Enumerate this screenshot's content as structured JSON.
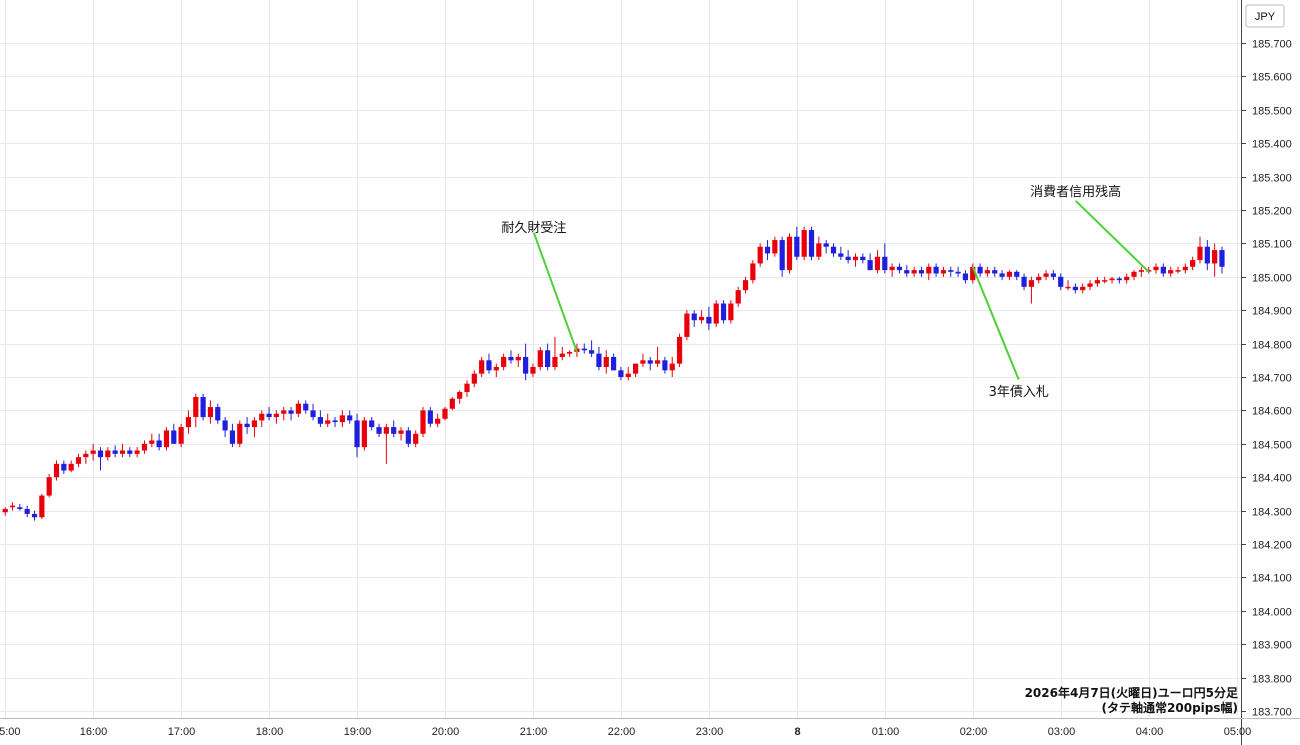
{
  "chart_data": {
    "type": "candlestick",
    "currency_label": "JPY",
    "ylim": [
      183.7,
      185.75
    ],
    "y_ticks": [
      "185.700",
      "185.600",
      "185.500",
      "185.400",
      "185.300",
      "185.200",
      "185.100",
      "185.000",
      "184.900",
      "184.800",
      "184.700",
      "184.600",
      "184.500",
      "184.400",
      "184.300",
      "184.200",
      "184.100",
      "184.000",
      "183.900",
      "183.800",
      "183.700"
    ],
    "x_tick_labels": [
      "5:00",
      "16:00",
      "17:00",
      "18:00",
      "19:00",
      "20:00",
      "21:00",
      "22:00",
      "23:00",
      "8",
      "01:00",
      "02:00",
      "03:00",
      "04:00",
      "05:00"
    ],
    "bold_x_tick": "8",
    "grid": true,
    "caption": [
      "2026年4月7日(火曜日)ユーロ円5分足",
      "(タテ軸通常200pips幅)"
    ],
    "up_color": "#e8000b",
    "down_color": "#1f1fdd",
    "annotation_color": "#4cd137",
    "annotations": [
      {
        "label": "耐久財受注",
        "bar": 78,
        "price": 184.775
      },
      {
        "label": "3年債入札",
        "bar": 132,
        "price": 185.03
      },
      {
        "label": "消費者信用残高",
        "bar": 156,
        "price": 185.015
      }
    ],
    "candles": [
      [
        184.295,
        184.31,
        184.285,
        184.305
      ],
      [
        184.31,
        184.325,
        184.3,
        184.315
      ],
      [
        184.31,
        184.32,
        184.3,
        184.305
      ],
      [
        184.305,
        184.315,
        184.28,
        184.29
      ],
      [
        184.29,
        184.3,
        184.27,
        184.28
      ],
      [
        184.28,
        184.35,
        184.275,
        184.345
      ],
      [
        184.345,
        184.41,
        184.34,
        184.4
      ],
      [
        184.4,
        184.45,
        184.39,
        184.44
      ],
      [
        184.44,
        184.45,
        184.41,
        184.42
      ],
      [
        184.42,
        184.45,
        184.415,
        184.44
      ],
      [
        184.44,
        184.47,
        184.43,
        184.46
      ],
      [
        184.46,
        184.48,
        184.44,
        184.47
      ],
      [
        184.47,
        184.5,
        184.45,
        184.48
      ],
      [
        184.48,
        184.49,
        184.42,
        184.46
      ],
      [
        184.46,
        184.49,
        184.45,
        184.48
      ],
      [
        184.48,
        184.495,
        184.46,
        184.47
      ],
      [
        184.47,
        184.5,
        184.46,
        184.48
      ],
      [
        184.48,
        184.49,
        184.46,
        184.47
      ],
      [
        184.47,
        184.49,
        184.46,
        184.48
      ],
      [
        184.48,
        184.51,
        184.47,
        184.5
      ],
      [
        184.5,
        184.53,
        184.49,
        184.51
      ],
      [
        184.51,
        184.53,
        184.48,
        184.49
      ],
      [
        184.49,
        184.55,
        184.48,
        184.54
      ],
      [
        184.54,
        184.56,
        184.5,
        184.5
      ],
      [
        184.5,
        184.56,
        184.49,
        184.55
      ],
      [
        184.55,
        184.6,
        184.53,
        184.58
      ],
      [
        184.58,
        184.65,
        184.55,
        184.64
      ],
      [
        184.64,
        184.65,
        184.57,
        184.58
      ],
      [
        184.58,
        184.63,
        184.56,
        184.61
      ],
      [
        184.61,
        184.62,
        184.56,
        184.57
      ],
      [
        184.57,
        184.58,
        184.52,
        184.54
      ],
      [
        184.54,
        184.56,
        184.49,
        184.5
      ],
      [
        184.5,
        184.57,
        184.49,
        184.56
      ],
      [
        184.56,
        184.58,
        184.53,
        184.55
      ],
      [
        184.55,
        184.58,
        184.52,
        184.57
      ],
      [
        184.57,
        184.6,
        184.55,
        184.59
      ],
      [
        184.59,
        184.61,
        184.57,
        184.58
      ],
      [
        184.58,
        184.6,
        184.56,
        184.59
      ],
      [
        184.59,
        184.61,
        184.57,
        184.6
      ],
      [
        184.6,
        184.61,
        184.57,
        184.59
      ],
      [
        184.59,
        184.63,
        184.58,
        184.62
      ],
      [
        184.62,
        184.63,
        184.59,
        184.6
      ],
      [
        184.6,
        184.62,
        184.57,
        184.58
      ],
      [
        184.58,
        184.6,
        184.55,
        184.56
      ],
      [
        184.56,
        184.59,
        184.55,
        184.57
      ],
      [
        184.57,
        184.58,
        184.55,
        184.565
      ],
      [
        184.565,
        184.6,
        184.55,
        184.585
      ],
      [
        184.585,
        184.6,
        184.56,
        184.57
      ],
      [
        184.57,
        184.59,
        184.46,
        184.49
      ],
      [
        184.49,
        184.58,
        184.48,
        184.57
      ],
      [
        184.57,
        184.58,
        184.54,
        184.55
      ],
      [
        184.55,
        184.56,
        184.52,
        184.53
      ],
      [
        184.53,
        184.56,
        184.44,
        184.55
      ],
      [
        184.55,
        184.57,
        184.52,
        184.53
      ],
      [
        184.53,
        184.55,
        184.51,
        184.54
      ],
      [
        184.54,
        184.55,
        184.49,
        184.5
      ],
      [
        184.5,
        184.54,
        184.49,
        184.53
      ],
      [
        184.53,
        184.61,
        184.52,
        184.6
      ],
      [
        184.6,
        184.61,
        184.55,
        184.56
      ],
      [
        184.56,
        184.59,
        184.55,
        184.575
      ],
      [
        184.575,
        184.61,
        184.57,
        184.605
      ],
      [
        184.605,
        184.64,
        184.6,
        184.635
      ],
      [
        184.635,
        184.66,
        184.62,
        184.655
      ],
      [
        184.655,
        184.69,
        184.64,
        184.68
      ],
      [
        184.68,
        184.72,
        184.67,
        184.71
      ],
      [
        184.71,
        184.76,
        184.7,
        184.75
      ],
      [
        184.75,
        184.77,
        184.71,
        184.72
      ],
      [
        184.72,
        184.74,
        184.7,
        184.73
      ],
      [
        184.73,
        184.77,
        184.72,
        184.76
      ],
      [
        184.76,
        184.78,
        184.74,
        184.75
      ],
      [
        184.75,
        184.77,
        184.73,
        184.76
      ],
      [
        184.76,
        184.8,
        184.69,
        184.71
      ],
      [
        184.71,
        184.74,
        184.7,
        184.73
      ],
      [
        184.73,
        184.79,
        184.72,
        184.78
      ],
      [
        184.78,
        184.8,
        184.72,
        184.73
      ],
      [
        184.73,
        184.82,
        184.72,
        184.76
      ],
      [
        184.76,
        184.79,
        184.75,
        184.77
      ],
      [
        184.77,
        184.78,
        184.76,
        184.775
      ],
      [
        184.775,
        184.8,
        184.76,
        184.785
      ],
      [
        184.785,
        184.8,
        184.77,
        184.78
      ],
      [
        184.78,
        184.81,
        184.76,
        184.77
      ],
      [
        184.77,
        184.79,
        184.72,
        184.73
      ],
      [
        184.73,
        184.78,
        184.71,
        184.76
      ],
      [
        184.76,
        184.77,
        184.72,
        184.72
      ],
      [
        184.72,
        184.73,
        184.69,
        184.7
      ],
      [
        184.7,
        184.73,
        184.69,
        184.71
      ],
      [
        184.71,
        184.74,
        184.7,
        184.74
      ],
      [
        184.74,
        184.77,
        184.73,
        184.75
      ],
      [
        184.75,
        184.76,
        184.72,
        184.74
      ],
      [
        184.74,
        184.79,
        184.73,
        184.75
      ],
      [
        184.75,
        184.76,
        184.71,
        184.72
      ],
      [
        184.72,
        184.76,
        184.7,
        184.74
      ],
      [
        184.74,
        184.83,
        184.73,
        184.82
      ],
      [
        184.82,
        184.9,
        184.81,
        184.89
      ],
      [
        184.89,
        184.9,
        184.85,
        184.87
      ],
      [
        184.87,
        184.9,
        184.86,
        184.88
      ],
      [
        184.88,
        184.91,
        184.84,
        184.86
      ],
      [
        184.86,
        184.93,
        184.85,
        184.92
      ],
      [
        184.92,
        184.93,
        184.86,
        184.87
      ],
      [
        184.87,
        184.93,
        184.86,
        184.92
      ],
      [
        184.92,
        184.97,
        184.91,
        184.96
      ],
      [
        184.96,
        185.0,
        184.95,
        184.99
      ],
      [
        184.99,
        185.05,
        184.98,
        185.04
      ],
      [
        185.04,
        185.1,
        185.03,
        185.09
      ],
      [
        185.09,
        185.11,
        185.05,
        185.07
      ],
      [
        185.07,
        185.12,
        185.06,
        185.11
      ],
      [
        185.11,
        185.12,
        185.0,
        185.02
      ],
      [
        185.02,
        185.13,
        185.01,
        185.12
      ],
      [
        185.12,
        185.15,
        185.05,
        185.06
      ],
      [
        185.06,
        185.15,
        185.05,
        185.14
      ],
      [
        185.14,
        185.15,
        185.05,
        185.06
      ],
      [
        185.06,
        185.12,
        185.05,
        185.1
      ],
      [
        185.1,
        185.11,
        185.07,
        185.09
      ],
      [
        185.09,
        185.1,
        185.06,
        185.07
      ],
      [
        185.07,
        185.09,
        185.05,
        185.06
      ],
      [
        185.06,
        185.08,
        185.04,
        185.05
      ],
      [
        185.05,
        185.07,
        185.03,
        185.06
      ],
      [
        185.06,
        185.07,
        185.04,
        185.05
      ],
      [
        185.05,
        185.07,
        185.02,
        185.02
      ],
      [
        185.02,
        185.08,
        185.01,
        185.06
      ],
      [
        185.06,
        185.1,
        185.01,
        185.02
      ],
      [
        185.02,
        185.04,
        185.0,
        185.03
      ],
      [
        185.03,
        185.04,
        185.01,
        185.02
      ],
      [
        185.02,
        185.035,
        185.0,
        185.01
      ],
      [
        185.01,
        185.03,
        185.0,
        185.02
      ],
      [
        185.02,
        185.03,
        185.0,
        185.01
      ],
      [
        185.01,
        185.04,
        184.99,
        185.03
      ],
      [
        185.03,
        185.04,
        185.0,
        185.01
      ],
      [
        185.01,
        185.03,
        185.0,
        185.02
      ],
      [
        185.02,
        185.03,
        185.0,
        185.015
      ],
      [
        185.015,
        185.03,
        185.0,
        185.01
      ],
      [
        185.01,
        185.02,
        184.98,
        184.99
      ],
      [
        184.99,
        185.04,
        184.98,
        185.03
      ],
      [
        185.03,
        185.04,
        185.0,
        185.01
      ],
      [
        185.01,
        185.03,
        185.0,
        185.02
      ],
      [
        185.02,
        185.03,
        185.0,
        185.01
      ],
      [
        185.01,
        185.02,
        184.99,
        185.0
      ],
      [
        185.0,
        185.02,
        184.99,
        185.015
      ],
      [
        185.015,
        185.02,
        184.99,
        185.0
      ],
      [
        185.0,
        185.01,
        184.96,
        184.97
      ],
      [
        184.97,
        185.0,
        184.92,
        184.99
      ],
      [
        184.99,
        185.01,
        184.98,
        185.0
      ],
      [
        185.0,
        185.02,
        184.99,
        185.01
      ],
      [
        185.01,
        185.02,
        184.99,
        185.0
      ],
      [
        185.0,
        185.01,
        184.96,
        184.97
      ],
      [
        184.97,
        184.99,
        184.96,
        184.97
      ],
      [
        184.97,
        184.98,
        184.95,
        184.96
      ],
      [
        184.96,
        184.98,
        184.95,
        184.97
      ],
      [
        184.97,
        184.99,
        184.96,
        184.98
      ],
      [
        184.98,
        185.0,
        184.97,
        184.99
      ],
      [
        184.99,
        185.0,
        184.98,
        184.99
      ],
      [
        184.99,
        185.0,
        184.98,
        184.995
      ],
      [
        184.995,
        185.0,
        184.98,
        184.99
      ],
      [
        184.99,
        185.01,
        184.98,
        185.0
      ],
      [
        185.0,
        185.02,
        184.99,
        185.015
      ],
      [
        185.015,
        185.03,
        185.0,
        185.02
      ],
      [
        185.02,
        185.03,
        185.01,
        185.02
      ],
      [
        185.02,
        185.04,
        185.01,
        185.03
      ],
      [
        185.03,
        185.04,
        185.0,
        185.01
      ],
      [
        185.01,
        185.03,
        185.0,
        185.02
      ],
      [
        185.02,
        185.03,
        185.01,
        185.02
      ],
      [
        185.02,
        185.04,
        185.01,
        185.03
      ],
      [
        185.03,
        185.06,
        185.02,
        185.05
      ],
      [
        185.05,
        185.12,
        185.04,
        185.09
      ],
      [
        185.09,
        185.11,
        185.02,
        185.04
      ],
      [
        185.04,
        185.1,
        185.0,
        185.08
      ],
      [
        185.08,
        185.09,
        185.01,
        185.03
      ]
    ]
  }
}
